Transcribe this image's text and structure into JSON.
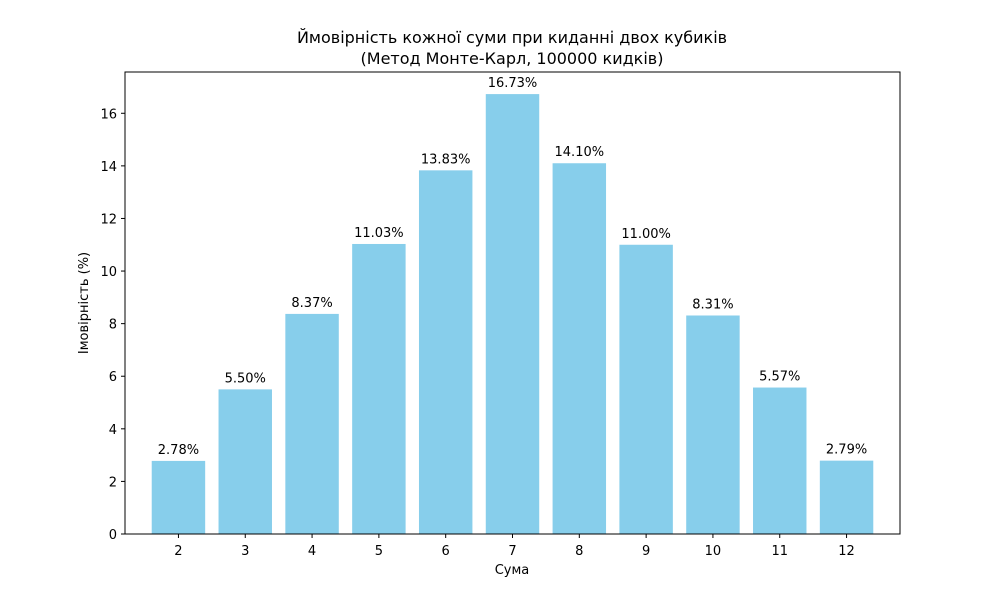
{
  "chart_data": {
    "type": "bar",
    "title": "Ймовірність кожної суми при киданні двох кубиків",
    "subtitle": "(Метод Монте-Карл, 100000 кидків)",
    "xlabel": "Сума",
    "ylabel": "Імовірність (%)",
    "categories": [
      "2",
      "3",
      "4",
      "5",
      "6",
      "7",
      "8",
      "9",
      "10",
      "11",
      "12"
    ],
    "values": [
      2.78,
      5.5,
      8.37,
      11.03,
      13.83,
      16.73,
      14.1,
      11.0,
      8.31,
      5.57,
      2.79
    ],
    "data_labels": [
      "2.78%",
      "5.50%",
      "8.37%",
      "11.03%",
      "13.83%",
      "16.73%",
      "14.10%",
      "11.00%",
      "8.31%",
      "5.57%",
      "2.79%"
    ],
    "yticks": [
      "0",
      "2",
      "4",
      "6",
      "8",
      "10",
      "12",
      "14",
      "16"
    ],
    "ylim": [
      0,
      17.57
    ],
    "bar_color": "#87CEEB",
    "grid": false,
    "legend": "none"
  }
}
